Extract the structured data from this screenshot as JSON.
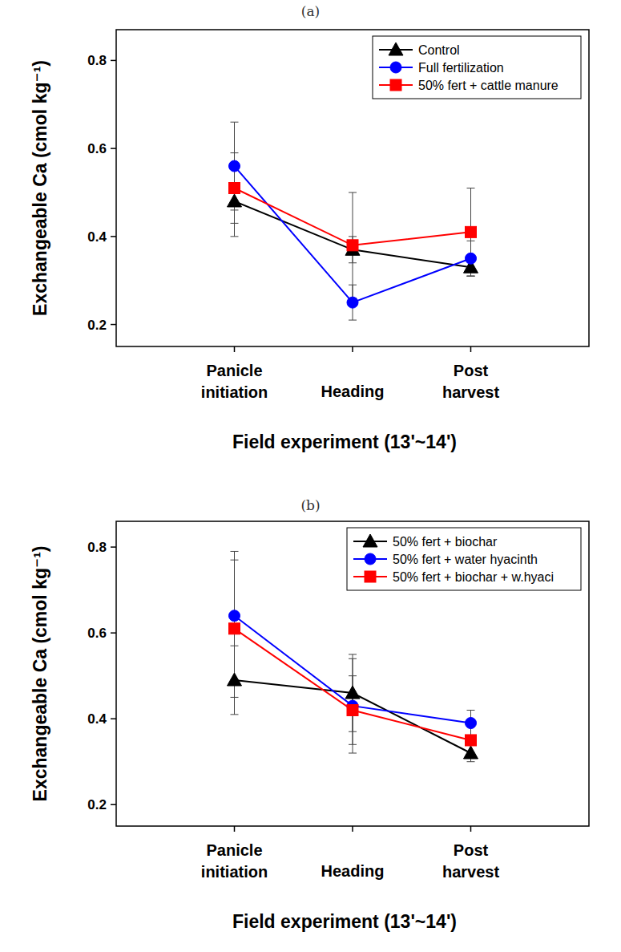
{
  "chart_data": [
    {
      "type": "line",
      "title": "(a)",
      "x_label": "Field experiment (13'~14')",
      "y_label": "Exchangeable Ca (cmol kg⁻¹)",
      "categories": [
        "Panicle\ninitiation",
        "Heading",
        "Post\nharvest"
      ],
      "ylim": [
        0.15,
        0.87
      ],
      "yticks": [
        0.2,
        0.4,
        0.6,
        0.8
      ],
      "legend": "top-right",
      "series": [
        {
          "name": "Control",
          "color": "#000000",
          "marker": "triangle",
          "values": [
            0.48,
            0.37,
            0.33
          ],
          "errors": [
            0.08,
            0.03,
            0.02
          ]
        },
        {
          "name": "Full fertilization",
          "color": "#0000ff",
          "marker": "circle",
          "values": [
            0.56,
            0.25,
            0.35
          ],
          "errors": [
            0.1,
            0.04,
            0.04
          ]
        },
        {
          "name": "50% fert + cattle manure",
          "color": "#ff0000",
          "marker": "square",
          "values": [
            0.51,
            0.38,
            0.41
          ],
          "errors": [
            0.08,
            0.12,
            0.1
          ]
        }
      ]
    },
    {
      "type": "line",
      "title": "(b)",
      "x_label": "Field experiment (13'~14')",
      "y_label": "Exchangeable Ca (cmol kg⁻¹)",
      "categories": [
        "Panicle\ninitiation",
        "Heading",
        "Post\nharvest"
      ],
      "ylim": [
        0.15,
        0.86
      ],
      "yticks": [
        0.2,
        0.4,
        0.6,
        0.8
      ],
      "legend": "top-right",
      "series": [
        {
          "name": "50% fert + biochar",
          "color": "#000000",
          "marker": "triangle",
          "values": [
            0.49,
            0.46,
            0.32
          ],
          "errors": [
            0.08,
            0.09,
            0.02
          ]
        },
        {
          "name": "50% fert + water hyacinth",
          "color": "#0000ff",
          "marker": "circle",
          "values": [
            0.64,
            0.43,
            0.39
          ],
          "errors": [
            0.15,
            0.11,
            0.03
          ]
        },
        {
          "name": "50% fert + biochar + w.hyaci",
          "color": "#ff0000",
          "marker": "square",
          "values": [
            0.61,
            0.42,
            0.35
          ],
          "errors": [
            0.16,
            0.08,
            0.04
          ]
        }
      ]
    }
  ]
}
